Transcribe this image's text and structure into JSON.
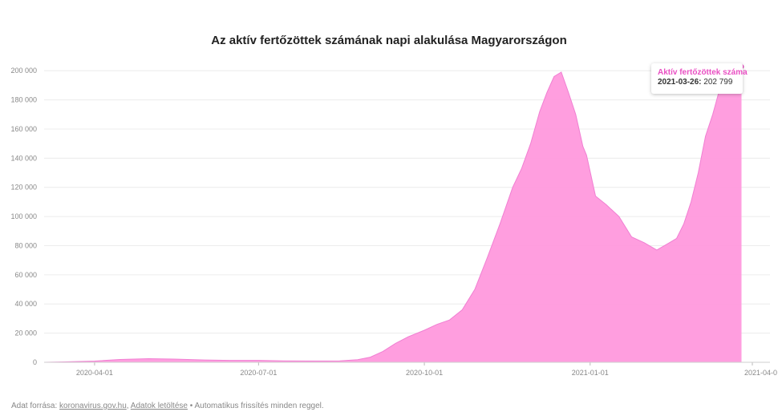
{
  "chart_data": {
    "type": "area",
    "title": "Az aktív fertőzöttek számának napi alakulása Magyarországon",
    "series": [
      {
        "name": "Aktív fertőzöttek száma",
        "color": "#ff99dd"
      }
    ],
    "x": [
      "2020-03-04",
      "2020-03-15",
      "2020-04-01",
      "2020-04-15",
      "2020-05-01",
      "2020-05-15",
      "2020-06-01",
      "2020-06-15",
      "2020-07-01",
      "2020-07-15",
      "2020-08-01",
      "2020-08-15",
      "2020-08-25",
      "2020-09-01",
      "2020-09-08",
      "2020-09-15",
      "2020-09-22",
      "2020-10-01",
      "2020-10-08",
      "2020-10-15",
      "2020-10-22",
      "2020-10-29",
      "2020-11-05",
      "2020-11-12",
      "2020-11-19",
      "2020-11-24",
      "2020-11-29",
      "2020-12-04",
      "2020-12-08",
      "2020-12-12",
      "2020-12-16",
      "2020-12-20",
      "2020-12-24",
      "2020-12-28",
      "2020-12-30",
      "2021-01-04",
      "2021-01-10",
      "2021-01-17",
      "2021-01-24",
      "2021-01-31",
      "2021-02-07",
      "2021-02-14",
      "2021-02-18",
      "2021-02-22",
      "2021-02-26",
      "2021-03-02",
      "2021-03-06",
      "2021-03-10",
      "2021-03-14",
      "2021-03-18",
      "2021-03-22",
      "2021-03-26"
    ],
    "values": [
      0,
      300,
      800,
      1900,
      2500,
      2200,
      1600,
      1300,
      1300,
      1000,
      900,
      1000,
      1800,
      3500,
      7500,
      13000,
      17500,
      22000,
      26000,
      29000,
      36000,
      50000,
      72000,
      95000,
      120000,
      133000,
      150000,
      172000,
      185000,
      196000,
      199000,
      185000,
      170000,
      148000,
      142000,
      114000,
      108000,
      100000,
      86000,
      82000,
      77000,
      82000,
      85000,
      95000,
      110000,
      130000,
      155000,
      170000,
      188000,
      195000,
      200000,
      202799
    ],
    "xlabel": "",
    "ylabel": "",
    "xlim": [
      "2020-03-04",
      "2021-04-01"
    ],
    "ylim": [
      0,
      210000
    ],
    "x_ticks": [
      "2020-04-01",
      "2020-07-01",
      "2020-10-01",
      "2021-01-01",
      "2021-04-0"
    ],
    "y_ticks": [
      0,
      20000,
      40000,
      60000,
      80000,
      100000,
      120000,
      140000,
      160000,
      180000,
      200000
    ],
    "y_tick_labels": [
      "0",
      "20 000",
      "40 000",
      "60 000",
      "80 000",
      "100 000",
      "120 000",
      "140 000",
      "160 000",
      "180 000",
      "200 000"
    ],
    "grid": true,
    "tooltip": {
      "series": "Aktív fertőzöttek száma",
      "date": "2021-03-26:",
      "value": "202 799"
    }
  },
  "footer": {
    "prefix": "Adat forrása: ",
    "source_link": "koronavirus.gov.hu",
    "sep": ", ",
    "download_link": "Adatok letöltése",
    "suffix": " • Automatikus frissítés minden reggel."
  }
}
